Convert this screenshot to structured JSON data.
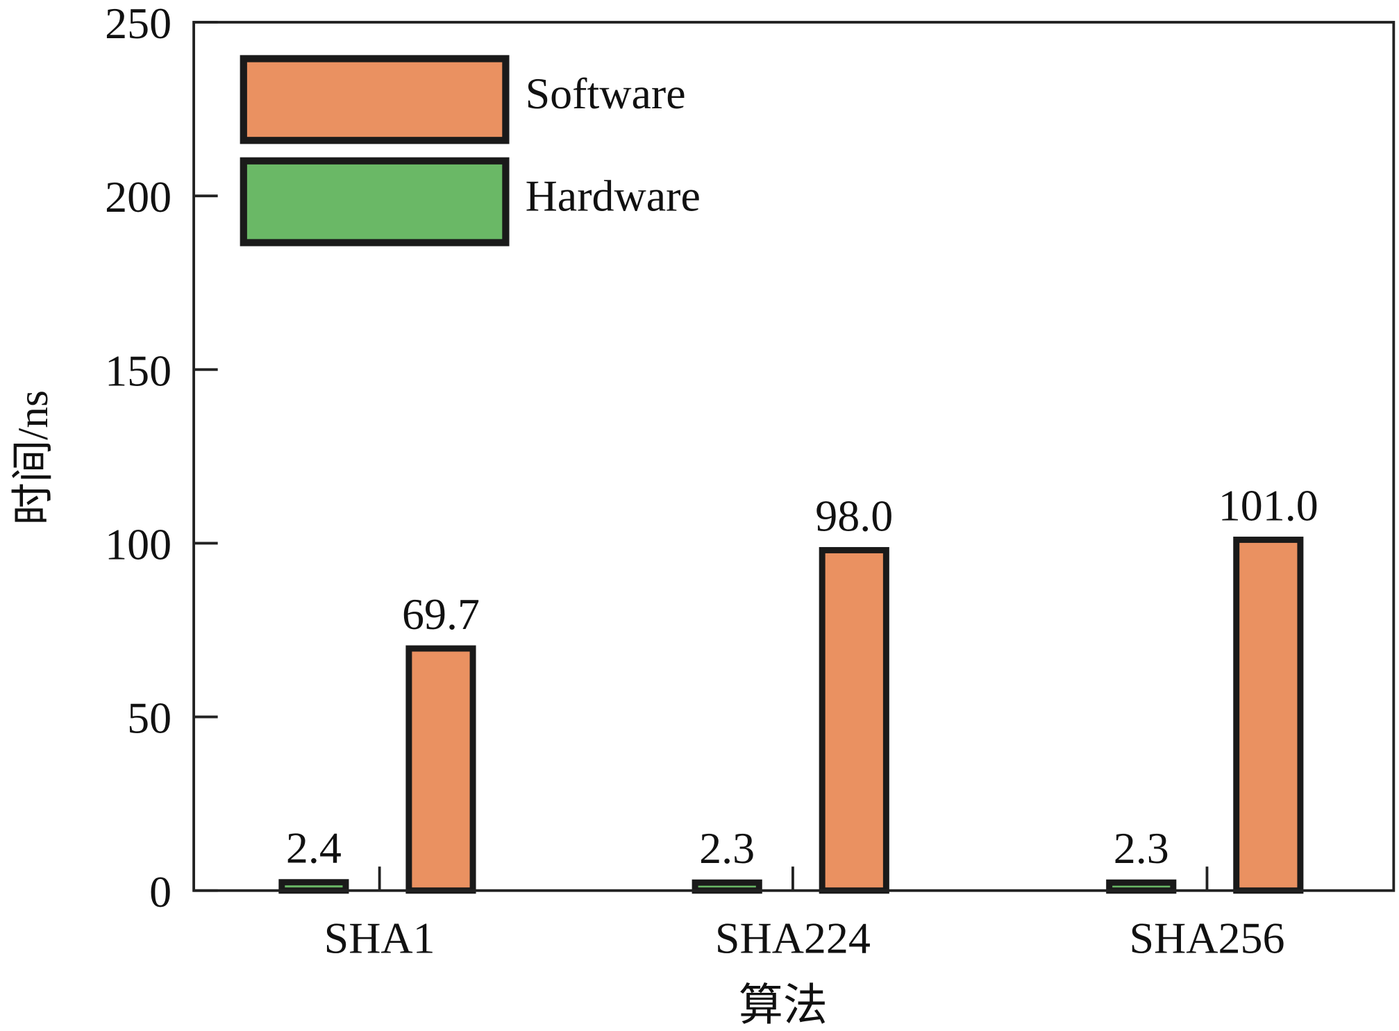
{
  "chart_data": {
    "type": "bar",
    "title": "",
    "xlabel": "算法",
    "ylabel": "时间/ns",
    "ylim": [
      0,
      250
    ],
    "yticks": [
      "0",
      "50",
      "100",
      "150",
      "200",
      "250"
    ],
    "categories": [
      "SHA1",
      "SHA224",
      "SHA256"
    ],
    "series": [
      {
        "name": "Hardware",
        "color": "#6ab866",
        "values": [
          2.4,
          2.3,
          2.3
        ],
        "labels": [
          "2.4",
          "2.3",
          "2.3"
        ]
      },
      {
        "name": "Software",
        "color": "#ea9161",
        "values": [
          69.7,
          98.0,
          101.0
        ],
        "labels": [
          "69.7",
          "98.0",
          "101.0"
        ]
      }
    ],
    "legend": {
      "placement": "top-left",
      "entries": [
        "Software",
        "Hardware"
      ]
    },
    "grid": false
  }
}
